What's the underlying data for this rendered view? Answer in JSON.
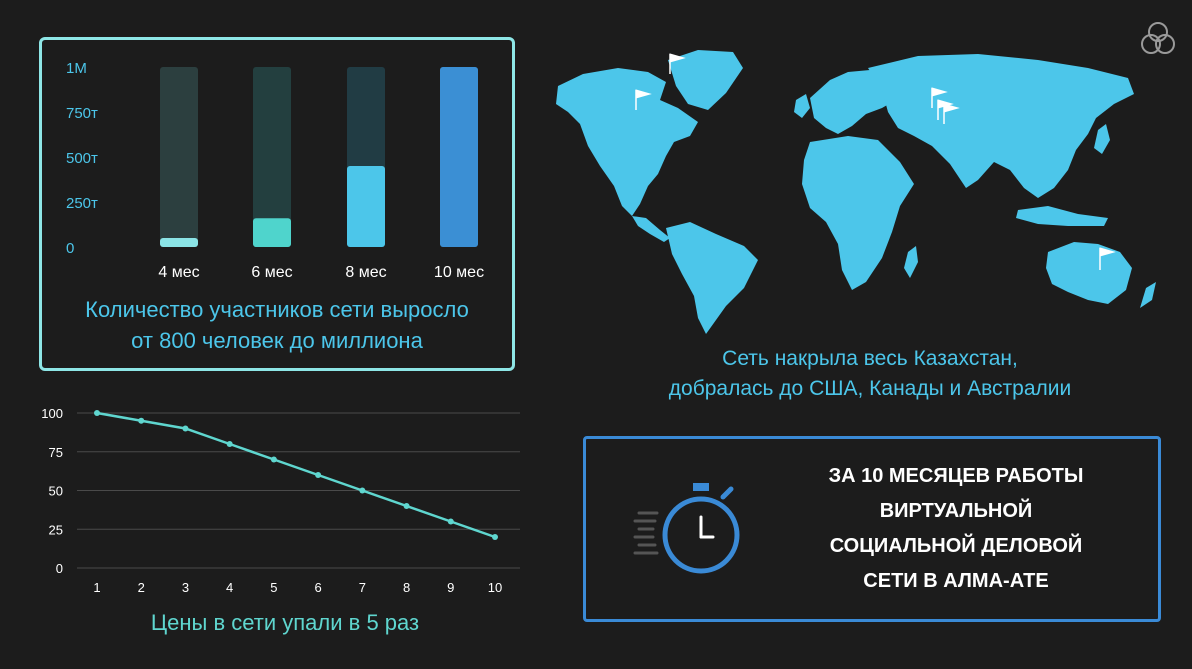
{
  "colors": {
    "background": "#1c1c1c",
    "panel_border": "#8ee6e6",
    "accent_cyan": "#4cc6ea",
    "accent_teal": "#5fd6cf",
    "box_border": "#3a8ad6",
    "map_fill": "#4cc6ea"
  },
  "icons": {
    "logo": "triangle-knot-logo",
    "timer": "stopwatch-icon",
    "flag": "flag-icon"
  },
  "chart_data": [
    {
      "type": "bar",
      "title": "",
      "xlabel": "",
      "ylabel": "",
      "ylim": [
        0,
        1000000
      ],
      "yticks": [
        {
          "value": 0,
          "label": "0"
        },
        {
          "value": 250000,
          "label": "250т"
        },
        {
          "value": 500000,
          "label": "500т"
        },
        {
          "value": 750000,
          "label": "750т"
        },
        {
          "value": 1000000,
          "label": "1M"
        }
      ],
      "categories": [
        "4 мес",
        "6 мес",
        "8 мес",
        "10 мес"
      ],
      "values": [
        50000,
        160000,
        450000,
        1000000
      ],
      "bar_colors": [
        "#8be4e6",
        "#4fd4cc",
        "#4cc6ea",
        "#3b8fd4"
      ],
      "track_colors": [
        "#2c3f3f",
        "#233f3f",
        "#213c44",
        "#2a4660"
      ],
      "grid": false,
      "caption": [
        "Количество участников сети выросло",
        "от 800 человек до миллиона"
      ]
    },
    {
      "type": "line",
      "title": "",
      "xlabel": "",
      "ylabel": "",
      "x": [
        1,
        2,
        3,
        4,
        5,
        6,
        7,
        8,
        9,
        10
      ],
      "y": [
        100,
        95,
        90,
        80,
        70,
        60,
        50,
        40,
        30,
        20
      ],
      "xticks": [
        "1",
        "2",
        "3",
        "4",
        "5",
        "6",
        "7",
        "8",
        "9",
        "10"
      ],
      "yticks": [
        "0",
        "25",
        "50",
        "75",
        "100"
      ],
      "ylim": [
        0,
        100
      ],
      "xlim": [
        1,
        10
      ],
      "grid": true,
      "line_color": "#5fd6cf",
      "caption": "Цены в сети упали в 5 раз"
    }
  ],
  "map": {
    "caption": [
      "Сеть накрыла весь Казахстан,",
      "добралась до США, Канады и Австралии"
    ]
  },
  "info": {
    "lines": [
      "ЗА 10 МЕСЯЦЕВ РАБОТЫ",
      "ВИРТУАЛЬНОЙ",
      "СОЦИАЛЬНОЙ ДЕЛОВОЙ",
      "СЕТИ В АЛМА-АТЕ"
    ]
  }
}
